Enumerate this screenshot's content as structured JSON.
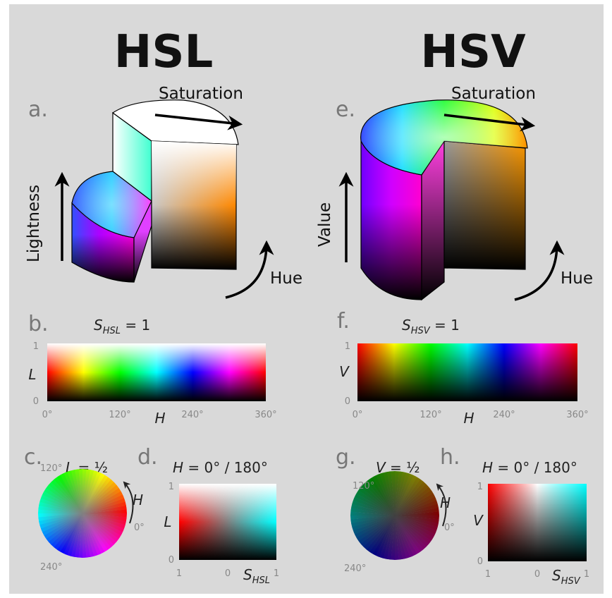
{
  "titles": {
    "left": "HSL",
    "right": "HSV"
  },
  "panel_letters": {
    "a": "a.",
    "b": "b.",
    "c": "c.",
    "d": "d.",
    "e": "e.",
    "f": "f.",
    "g": "g.",
    "h": "h."
  },
  "cylinder_hsl": {
    "saturation": "Saturation",
    "lightness": "Lightness",
    "hue": "Hue"
  },
  "cylinder_hsv": {
    "saturation": "Saturation",
    "value": "Value",
    "hue": "Hue"
  },
  "strip_hsl": {
    "eq_var": "S",
    "eq_sub": "HSL",
    "eq_rest": " = 1",
    "y_label": "L",
    "y_top": "1",
    "y_bottom": "0",
    "x_label": "H",
    "x_ticks": [
      "0°",
      "120°",
      "240°",
      "360°"
    ]
  },
  "strip_hsv": {
    "eq_var": "S",
    "eq_sub": "HSV",
    "eq_rest": " = 1",
    "y_label": "V",
    "y_top": "1",
    "y_bottom": "0",
    "x_label": "H",
    "x_ticks": [
      "0°",
      "120°",
      "240°",
      "360°"
    ]
  },
  "disk_hsl": {
    "eq_var": "L",
    "eq_rest": " = ½",
    "h_label": "H",
    "ticks": [
      "120°",
      "0°",
      "240°"
    ]
  },
  "disk_hsv": {
    "eq_var": "V",
    "eq_rest": " = ½",
    "h_label": "H",
    "ticks": [
      "120°",
      "0°",
      "240°"
    ]
  },
  "slice_hsl": {
    "eq_var": "H",
    "eq_rest": " = 0° / 180°",
    "y_label": "L",
    "y_top": "1",
    "y_bottom": "0",
    "x_left": "1",
    "x_mid": "0",
    "x_right": "1",
    "x_var": "S",
    "x_sub": "HSL"
  },
  "slice_hsv": {
    "eq_var": "H",
    "eq_rest": " = 0° / 180°",
    "y_label": "V",
    "y_top": "1",
    "y_bottom": "0",
    "x_left": "1",
    "x_mid": "0",
    "x_right": "1",
    "x_var": "S",
    "x_sub": "HSV"
  }
}
